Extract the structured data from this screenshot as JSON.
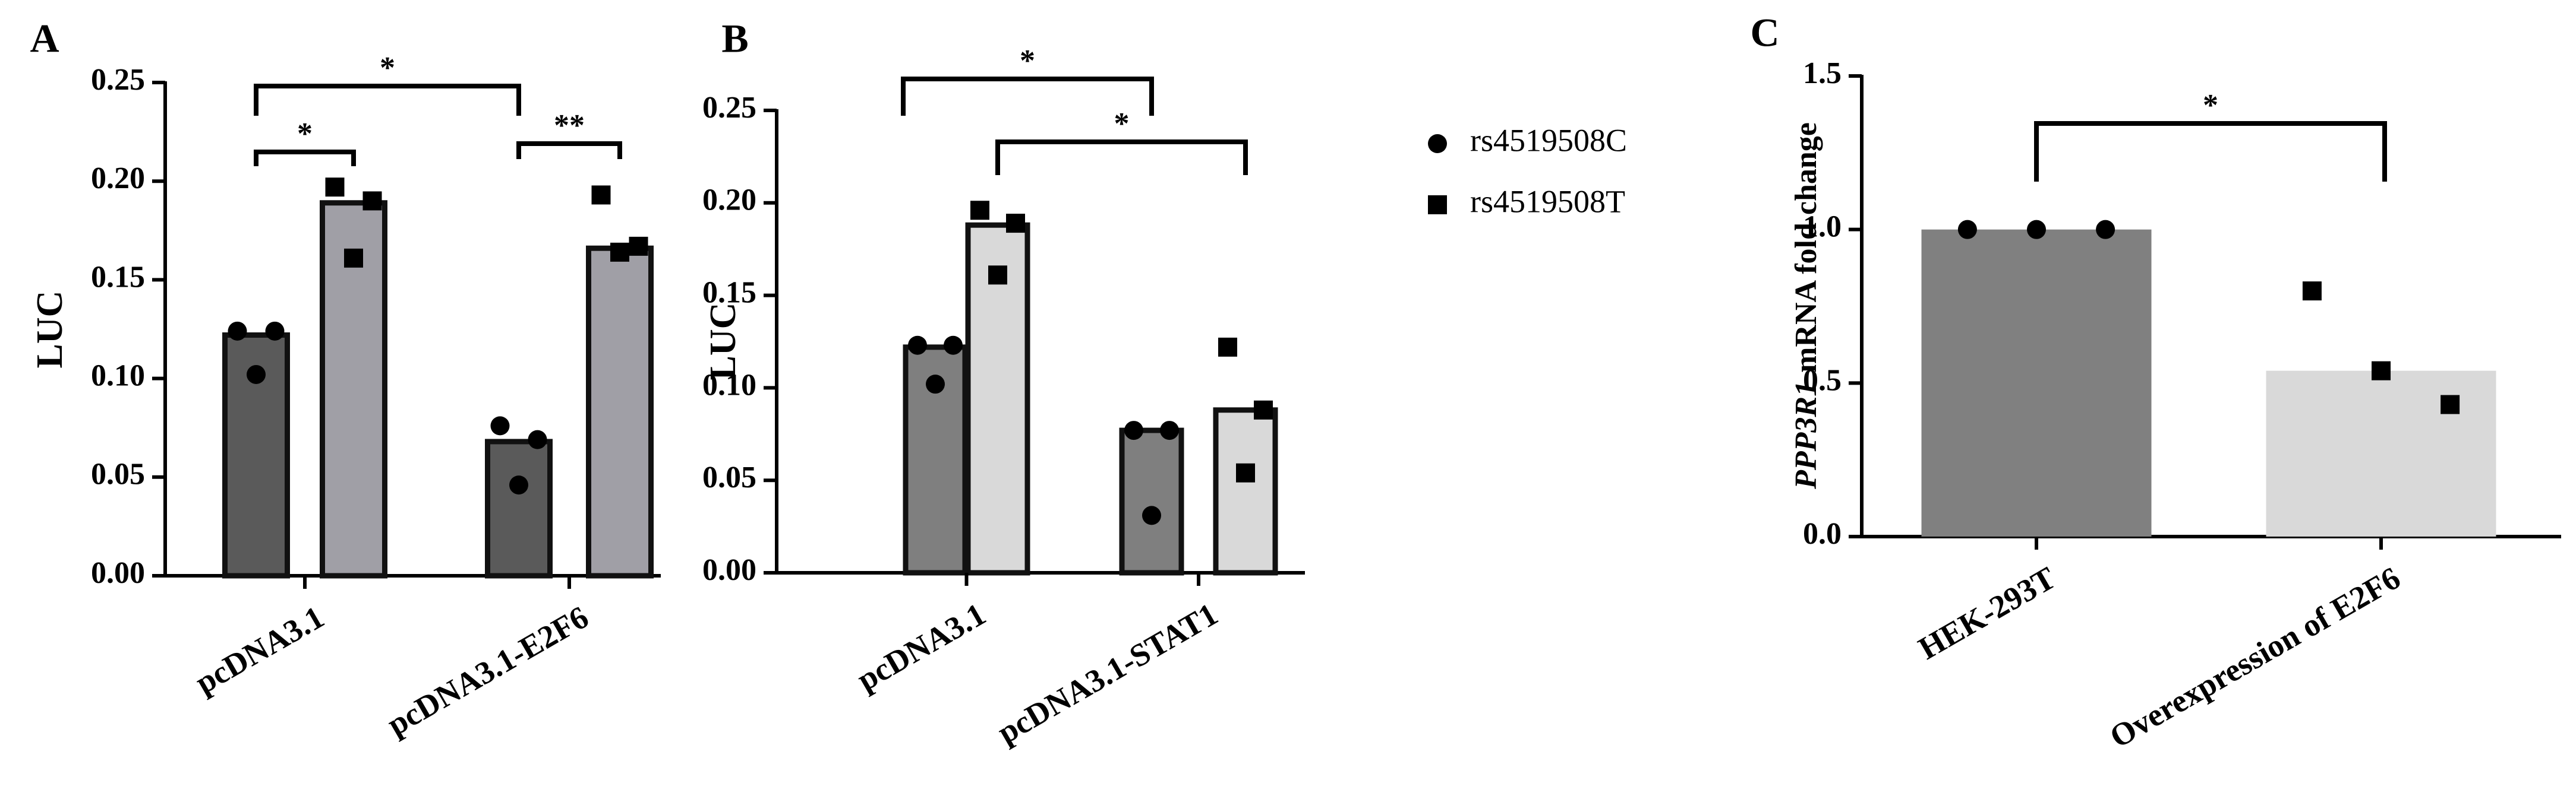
{
  "chart_data": [
    {
      "type": "grouped_bar_points",
      "panel_label": "A",
      "y_label": "LUC",
      "categories": [
        "pcDNA3.1",
        "pcDNA3.1-E2F6"
      ],
      "series": [
        {
          "color": "#5a5a5a",
          "marker": "circle",
          "values": [
            0.122,
            0.068
          ],
          "points": [
            [
              0.124,
              0.102,
              0.124
            ],
            [
              0.076,
              0.046,
              0.069
            ]
          ]
        },
        {
          "color": "#a09fa6",
          "marker": "square",
          "values": [
            0.189,
            0.166
          ],
          "points": [
            [
              0.197,
              0.161,
              0.19
            ],
            [
              0.193,
              0.164,
              0.167
            ]
          ]
        }
      ],
      "edgecolor": "#111111",
      "ylim": [
        0,
        0.25
      ],
      "yticks": [
        {
          "value": 0,
          "label": "0.00"
        },
        {
          "value": 0.05,
          "label": "0.05"
        },
        {
          "value": 0.1,
          "label": "0.10"
        },
        {
          "value": 0.15,
          "label": "0.15"
        },
        {
          "value": 0.2,
          "label": "0.20"
        },
        {
          "value": 0.25,
          "label": "0.25"
        }
      ],
      "annotations": [
        "*",
        "**",
        "*"
      ]
    },
    {
      "type": "grouped_bar_points",
      "panel_label": "B",
      "y_label": "LUC",
      "categories": [
        "pcDNA3.1",
        "pcDNA3.1-STAT1"
      ],
      "series": [
        {
          "name": "rs4519508C",
          "color": "#7f7f7f",
          "marker": "circle",
          "values": [
            0.122,
            0.077
          ],
          "points": [
            [
              0.123,
              0.102,
              0.123
            ],
            [
              0.077,
              0.031,
              0.077
            ]
          ]
        },
        {
          "name": "rs4519508T",
          "color": "#d9d9d9",
          "marker": "square",
          "values": [
            0.188,
            0.088
          ],
          "points": [
            [
              0.196,
              0.161,
              0.189
            ],
            [
              0.122,
              0.054,
              0.088
            ]
          ]
        }
      ],
      "edgecolor": "#111111",
      "ylim": [
        0,
        0.25
      ],
      "yticks": [
        {
          "value": 0,
          "label": "0.00"
        },
        {
          "value": 0.05,
          "label": "0.05"
        },
        {
          "value": 0.1,
          "label": "0.10"
        },
        {
          "value": 0.15,
          "label": "0.15"
        },
        {
          "value": 0.2,
          "label": "0.20"
        },
        {
          "value": 0.25,
          "label": "0.25"
        }
      ],
      "annotations": [
        "*",
        "*"
      ]
    },
    {
      "type": "bar_points",
      "panel_label": "C",
      "y_label_gene": "PPP3R1",
      "y_label": "mRNA fold change",
      "categories": [
        "HEK-293T",
        "Overexpression of E2F6"
      ],
      "values": [
        1.0,
        0.54
      ],
      "colors": [
        "#808080",
        "#d9d9d9"
      ],
      "markers": [
        "circle",
        "square"
      ],
      "points": [
        [
          1.0,
          1.0,
          1.0
        ],
        [
          0.8,
          0.54,
          0.43
        ]
      ],
      "ylim": [
        0,
        1.5
      ],
      "yticks": [
        {
          "value": 0,
          "label": "0.0"
        },
        {
          "value": 0.5,
          "label": "0.5"
        },
        {
          "value": 1.0,
          "label": "1.0"
        },
        {
          "value": 1.5,
          "label": "1.5"
        }
      ],
      "annotations": [
        "*"
      ]
    }
  ]
}
